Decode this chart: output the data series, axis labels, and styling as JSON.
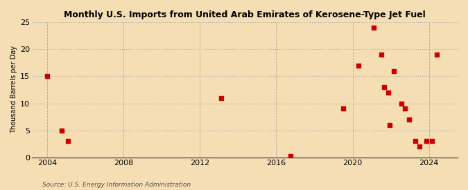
{
  "title": "Monthly U.S. Imports from United Arab Emirates of Kerosene-Type Jet Fuel",
  "ylabel": "Thousand Barrels per Day",
  "source": "Source: U.S. Energy Information Administration",
  "background_color": "#f5deb3",
  "plot_bg_color": "#f5deb3",
  "marker_color": "#cc0000",
  "marker_size": 18,
  "xlim": [
    2003.2,
    2025.5
  ],
  "ylim": [
    0,
    25
  ],
  "yticks": [
    0,
    5,
    10,
    15,
    20,
    25
  ],
  "xticks": [
    2004,
    2008,
    2012,
    2016,
    2020,
    2024
  ],
  "data_x": [
    2004.0,
    2004.75,
    2005.1,
    2013.1,
    2016.75,
    2019.5,
    2020.3,
    2021.1,
    2021.5,
    2021.65,
    2021.85,
    2021.95,
    2022.15,
    2022.55,
    2022.75,
    2022.95,
    2023.3,
    2023.5,
    2023.85,
    2024.15,
    2024.4
  ],
  "data_y": [
    15,
    5,
    3,
    11,
    0.3,
    9,
    17,
    24,
    19,
    13,
    12,
    6,
    16,
    10,
    9,
    7,
    3,
    2,
    3,
    3,
    19
  ]
}
